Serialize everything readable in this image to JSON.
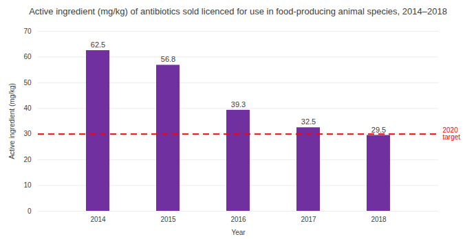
{
  "chart_data": {
    "type": "bar",
    "title": "Active ingredient (mg/kg) of antibiotics sold licenced for use in food-producing animal species, 2014–2018",
    "x_label": "Year",
    "y_label": "Active ingredient (mg/kg)",
    "categories": [
      "2014",
      "2015",
      "2016",
      "2017",
      "2018"
    ],
    "values": [
      62.5,
      56.8,
      39.3,
      32.5,
      29.5
    ],
    "color": "#7030a0",
    "ylim": [
      0,
      70
    ],
    "yticks": [
      0,
      10,
      20,
      30,
      40,
      50,
      60,
      70
    ],
    "grid": true,
    "data_labels": true,
    "annotations": [
      {
        "label": "2020 target",
        "value": 30,
        "color": "#ff0000",
        "line_style": "dashed"
      }
    ]
  }
}
